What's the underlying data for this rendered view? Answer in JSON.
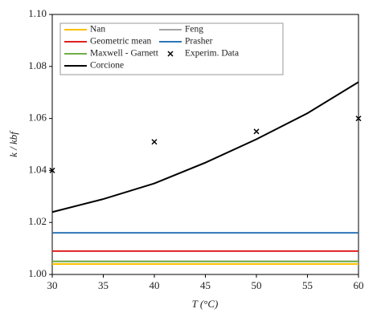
{
  "chart_data": {
    "type": "line",
    "xlabel": "T (°C)",
    "ylabel": "k / kbf",
    "x": [
      30,
      35,
      40,
      45,
      50,
      55,
      60
    ],
    "series": [
      {
        "name": "Nan",
        "color": "#ffc000",
        "values": [
          1.004,
          1.004,
          1.004,
          1.004,
          1.004,
          1.004,
          1.004
        ]
      },
      {
        "name": "Feng",
        "color": "#a5a5a5",
        "values": [
          1.005,
          1.005,
          1.005,
          1.005,
          1.005,
          1.005,
          1.005
        ]
      },
      {
        "name": "Geometric mean",
        "color": "#e02020",
        "values": [
          1.009,
          1.009,
          1.009,
          1.009,
          1.009,
          1.009,
          1.009
        ]
      },
      {
        "name": "Prasher",
        "color": "#2e75b6",
        "values": [
          1.016,
          1.016,
          1.016,
          1.016,
          1.016,
          1.016,
          1.016
        ]
      },
      {
        "name": "Maxwell - Garnett",
        "color": "#70ad47",
        "values": [
          1.005,
          1.005,
          1.005,
          1.005,
          1.005,
          1.005,
          1.005
        ]
      },
      {
        "name": "Experim. Data",
        "color": "#000000",
        "type": "scatter",
        "x": [
          30,
          40,
          50,
          60
        ],
        "values": [
          1.04,
          1.051,
          1.055,
          1.06
        ]
      },
      {
        "name": "Corcione",
        "color": "#000000",
        "values": [
          1.024,
          1.029,
          1.035,
          1.043,
          1.052,
          1.062,
          1.074
        ]
      }
    ],
    "xlim": [
      30,
      60
    ],
    "xticks": [
      30,
      35,
      40,
      45,
      50,
      55,
      60
    ],
    "ylim": [
      1.0,
      1.1
    ],
    "yticks": [
      {
        "value": 1.0,
        "label": "1.00"
      },
      {
        "value": 1.02,
        "label": "1.02"
      },
      {
        "value": 1.04,
        "label": "1.04"
      },
      {
        "value": 1.06,
        "label": "1.06"
      },
      {
        "value": 1.08,
        "label": "1.08"
      },
      {
        "value": 1.1,
        "label": "1.10"
      }
    ],
    "grid": false,
    "legend": "upper left"
  }
}
